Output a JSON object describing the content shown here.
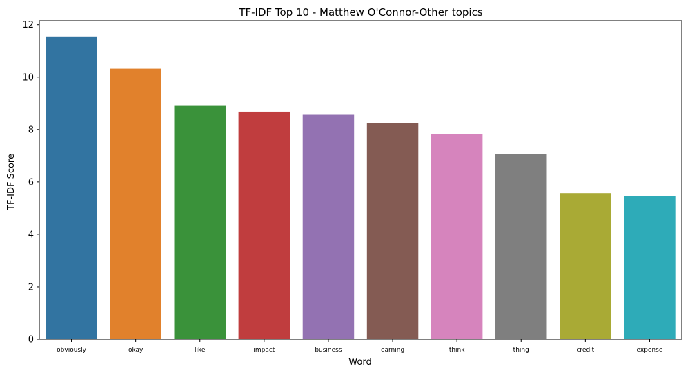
{
  "chart_data": {
    "type": "bar",
    "title": "TF-IDF Top 10 - Matthew O'Connor-Other topics",
    "xlabel": "Word",
    "ylabel": "TF-IDF Score",
    "categories": [
      "obviously",
      "okay",
      "like",
      "impact",
      "business",
      "earning",
      "think",
      "thing",
      "credit",
      "expense"
    ],
    "values": [
      11.55,
      10.32,
      8.9,
      8.68,
      8.56,
      8.25,
      7.83,
      7.06,
      5.57,
      5.46
    ],
    "colors": [
      "#3274a1",
      "#e1812c",
      "#3a923a",
      "#c03d3e",
      "#9372b2",
      "#845b53",
      "#d684bd",
      "#7f7f7f",
      "#a9aa35",
      "#2eabb8"
    ],
    "ylim": [
      0,
      12.15
    ],
    "yticks": [
      0,
      2,
      4,
      6,
      8,
      10,
      12
    ],
    "grid": false,
    "legend": "none"
  }
}
